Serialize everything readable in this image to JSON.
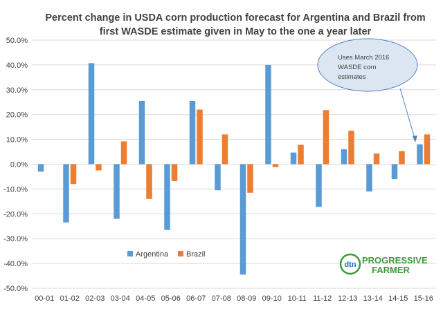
{
  "colors": {
    "argentina": "#5b9bd5",
    "brazil": "#ed7d31",
    "grid": "#d9d9d9",
    "text": "#404040",
    "callout_fill": "#dce6f2",
    "callout_stroke": "#4f81bd",
    "logo_green": "#3b9a3b",
    "logo_blue": "#1f6fb5"
  },
  "chart_data": {
    "type": "bar",
    "title_lines": [
      "Percent change in USDA corn production forecast for Argentina and Brazil from",
      "first WASDE  estimate given in May to the one a year later"
    ],
    "xlabel": "",
    "ylabel": "",
    "categories": [
      "00-01",
      "01-02",
      "02-03",
      "03-04",
      "04-05",
      "05-06",
      "06-07",
      "07-08",
      "08-09",
      "09-10",
      "10-11",
      "11-12",
      "12-13",
      "13-14",
      "14-15",
      "15-16"
    ],
    "series": [
      {
        "name": "Argentina",
        "values": [
          -3.0,
          -23.5,
          40.7,
          -22.0,
          25.5,
          -26.5,
          25.5,
          -10.5,
          -44.5,
          40.0,
          4.7,
          -17.2,
          6.0,
          -11.0,
          -6.0,
          8.0
        ]
      },
      {
        "name": "Brazil",
        "values": [
          0.0,
          -8.0,
          -2.5,
          9.2,
          -14.0,
          -6.8,
          22.0,
          12.0,
          -11.5,
          -1.2,
          7.8,
          21.8,
          13.5,
          4.3,
          5.3,
          12.0
        ]
      }
    ],
    "ylim": [
      -50,
      50
    ],
    "yticks": [
      50,
      40,
      30,
      20,
      10,
      0,
      -10,
      -20,
      -30,
      -40,
      -50
    ],
    "ytick_labels": [
      "50.0%",
      "40.0%",
      "30.0%",
      "20.0%",
      "10.0%",
      "0.0%",
      "-10.0%",
      "-20.0%",
      "-30.0%",
      "-40.0%",
      "-50.0%"
    ],
    "grid": true,
    "legend_position": "lower-left-inside",
    "annotation": {
      "lines": [
        "Uses March 2016",
        "WASDE corn",
        "estimates"
      ],
      "points_to": "15-16"
    }
  },
  "logo": {
    "mark": "dtn",
    "line1": "PROGRESSIVE",
    "line2": "FARMER"
  }
}
